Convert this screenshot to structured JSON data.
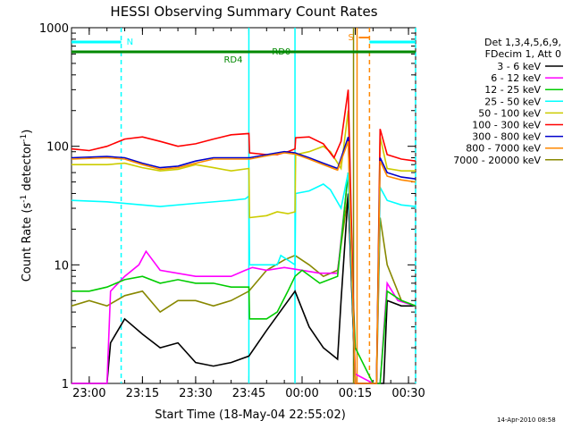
{
  "chart_data": {
    "type": "line",
    "title": "HESSI Observing Summary Count Rates",
    "xlabel": "Start Time (18-May-04 22:55:02)",
    "ylabel_main": "Count Rate (s",
    "ylabel_sup1": "-1",
    "ylabel_mid": " detector",
    "ylabel_sup2": "-1",
    "ylabel_end": ")",
    "yscale": "log",
    "ylim": [
      1,
      1000
    ],
    "xlim_min": [
      -5,
      35
    ],
    "x_ticks": [
      {
        "m": 0,
        "label": "23:00"
      },
      {
        "m": 15,
        "label": "23:15"
      },
      {
        "m": 30,
        "label": "23:30"
      },
      {
        "m": 45,
        "label": "23:45"
      },
      {
        "m": 60,
        "label": "00:00"
      },
      {
        "m": 75,
        "label": "00:15"
      },
      {
        "m": 90,
        "label": "00:30"
      }
    ],
    "y_ticks": [
      {
        "v": 1,
        "label": "1"
      },
      {
        "v": 10,
        "label": "10"
      },
      {
        "v": 100,
        "label": "100"
      },
      {
        "v": 1000,
        "label": "1000"
      }
    ],
    "legend_header": [
      "Det 1,3,4,5,6,9,",
      "FDecim 1, Att 0"
    ],
    "series": [
      {
        "name": "3 - 6 keV",
        "color": "#000000",
        "pts": [
          [
            -5,
            1
          ],
          [
            5,
            1
          ],
          [
            6,
            2.2
          ],
          [
            10,
            3.5
          ],
          [
            15,
            2.6
          ],
          [
            20,
            2
          ],
          [
            25,
            2.2
          ],
          [
            30,
            1.5
          ],
          [
            35,
            1.4
          ],
          [
            40,
            1.5
          ],
          [
            45,
            1.7
          ],
          [
            50,
            2.8
          ],
          [
            55,
            4.5
          ],
          [
            58,
            6
          ],
          [
            62,
            3
          ],
          [
            66,
            2
          ],
          [
            70,
            1.6
          ],
          [
            71,
            5
          ],
          [
            73,
            40
          ],
          [
            75,
            1
          ],
          [
            80,
            1
          ],
          [
            83,
            1
          ],
          [
            84,
            5
          ],
          [
            88,
            4.5
          ],
          [
            92,
            4.5
          ]
        ]
      },
      {
        "name": "6 - 12 keV",
        "color": "#ff00ff",
        "pts": [
          [
            -5,
            1
          ],
          [
            5,
            1
          ],
          [
            6,
            6
          ],
          [
            10,
            8
          ],
          [
            14,
            10
          ],
          [
            16,
            13
          ],
          [
            20,
            9
          ],
          [
            30,
            8
          ],
          [
            40,
            8
          ],
          [
            44,
            9
          ],
          [
            46,
            9.5
          ],
          [
            50,
            9
          ],
          [
            55,
            9.5
          ],
          [
            60,
            9
          ],
          [
            65,
            8.5
          ],
          [
            70,
            8.5
          ],
          [
            73,
            60
          ],
          [
            75,
            1.2
          ],
          [
            80,
            1
          ],
          [
            82,
            1
          ],
          [
            84,
            7
          ],
          [
            87,
            5
          ],
          [
            92,
            4.5
          ]
        ]
      },
      {
        "name": "12 - 25 keV",
        "color": "#00cc00",
        "pts": [
          [
            -5,
            6
          ],
          [
            0,
            6
          ],
          [
            5,
            6.5
          ],
          [
            10,
            7.5
          ],
          [
            15,
            8
          ],
          [
            20,
            7
          ],
          [
            25,
            7.5
          ],
          [
            30,
            7
          ],
          [
            35,
            7
          ],
          [
            40,
            6.5
          ],
          [
            45,
            6.5
          ],
          [
            45.2,
            3.5
          ],
          [
            50,
            3.5
          ],
          [
            53,
            4
          ],
          [
            56,
            6
          ],
          [
            58,
            8
          ],
          [
            60,
            9
          ],
          [
            65,
            7
          ],
          [
            70,
            8
          ],
          [
            73,
            60
          ],
          [
            75,
            2
          ],
          [
            80,
            1
          ],
          [
            82,
            1
          ],
          [
            84,
            6
          ],
          [
            88,
            5
          ],
          [
            92,
            4.5
          ]
        ]
      },
      {
        "name": "25 - 50 keV",
        "color": "#00ffff",
        "pts": [
          [
            -5,
            35
          ],
          [
            5,
            34
          ],
          [
            15,
            32
          ],
          [
            20,
            31
          ],
          [
            30,
            33
          ],
          [
            40,
            35
          ],
          [
            44,
            36
          ],
          [
            45,
            38
          ],
          [
            45.2,
            10
          ],
          [
            53,
            10
          ],
          [
            54,
            12
          ],
          [
            58,
            10
          ],
          [
            58.2,
            40
          ],
          [
            62,
            42
          ],
          [
            66,
            48
          ],
          [
            68,
            43
          ],
          [
            71,
            30
          ],
          [
            73,
            60
          ],
          [
            75,
            1
          ],
          [
            80,
            1
          ],
          [
            81,
            1
          ],
          [
            82,
            45
          ],
          [
            84,
            35
          ],
          [
            88,
            32
          ],
          [
            92,
            31
          ]
        ]
      },
      {
        "name": "50 - 100 keV",
        "color": "#cccc00",
        "pts": [
          [
            -5,
            70
          ],
          [
            5,
            70
          ],
          [
            10,
            72
          ],
          [
            15,
            66
          ],
          [
            20,
            62
          ],
          [
            25,
            64
          ],
          [
            30,
            70
          ],
          [
            35,
            66
          ],
          [
            40,
            62
          ],
          [
            45,
            65
          ],
          [
            45.2,
            25
          ],
          [
            50,
            26
          ],
          [
            53,
            28
          ],
          [
            56,
            27
          ],
          [
            58,
            28
          ],
          [
            58.2,
            85
          ],
          [
            62,
            90
          ],
          [
            66,
            100
          ],
          [
            68,
            90
          ],
          [
            71,
            65
          ],
          [
            73,
            200
          ],
          [
            75,
            1
          ],
          [
            80,
            1
          ],
          [
            81,
            1
          ],
          [
            82,
            120
          ],
          [
            84,
            65
          ],
          [
            88,
            62
          ],
          [
            92,
            62
          ]
        ]
      },
      {
        "name": "100 - 300 keV",
        "color": "#ff0000",
        "pts": [
          [
            -5,
            95
          ],
          [
            0,
            92
          ],
          [
            5,
            100
          ],
          [
            10,
            115
          ],
          [
            15,
            120
          ],
          [
            20,
            110
          ],
          [
            25,
            100
          ],
          [
            30,
            105
          ],
          [
            35,
            115
          ],
          [
            40,
            125
          ],
          [
            45,
            128
          ],
          [
            45.2,
            88
          ],
          [
            50,
            85
          ],
          [
            53,
            85
          ],
          [
            56,
            90
          ],
          [
            58,
            95
          ],
          [
            58.2,
            118
          ],
          [
            62,
            120
          ],
          [
            66,
            105
          ],
          [
            69,
            80
          ],
          [
            71,
            110
          ],
          [
            73,
            300
          ],
          [
            75,
            1
          ],
          [
            80,
            1
          ],
          [
            81,
            1
          ],
          [
            82,
            140
          ],
          [
            84,
            85
          ],
          [
            88,
            78
          ],
          [
            92,
            75
          ]
        ]
      },
      {
        "name": "300 - 800 keV",
        "color": "#0000cc",
        "pts": [
          [
            -5,
            80
          ],
          [
            5,
            82
          ],
          [
            10,
            80
          ],
          [
            15,
            72
          ],
          [
            20,
            66
          ],
          [
            25,
            68
          ],
          [
            30,
            75
          ],
          [
            35,
            80
          ],
          [
            40,
            80
          ],
          [
            45,
            80
          ],
          [
            45.2,
            80
          ],
          [
            50,
            85
          ],
          [
            55,
            90
          ],
          [
            58,
            88
          ],
          [
            62,
            80
          ],
          [
            66,
            72
          ],
          [
            70,
            65
          ],
          [
            73,
            120
          ],
          [
            75,
            1
          ],
          [
            80,
            1
          ],
          [
            81,
            1
          ],
          [
            82,
            80
          ],
          [
            84,
            60
          ],
          [
            88,
            55
          ],
          [
            92,
            53
          ]
        ]
      },
      {
        "name": "800 - 7000 keV",
        "color": "#ff8800",
        "pts": [
          [
            -5,
            78
          ],
          [
            5,
            80
          ],
          [
            10,
            78
          ],
          [
            15,
            70
          ],
          [
            20,
            64
          ],
          [
            25,
            66
          ],
          [
            30,
            72
          ],
          [
            35,
            78
          ],
          [
            40,
            78
          ],
          [
            45,
            78
          ],
          [
            45.2,
            78
          ],
          [
            50,
            83
          ],
          [
            55,
            88
          ],
          [
            58,
            86
          ],
          [
            62,
            78
          ],
          [
            66,
            70
          ],
          [
            70,
            63
          ],
          [
            73,
            110
          ],
          [
            75,
            1
          ],
          [
            80,
            1
          ],
          [
            81,
            1
          ],
          [
            82,
            75
          ],
          [
            84,
            56
          ],
          [
            88,
            52
          ],
          [
            92,
            50
          ]
        ]
      },
      {
        "name": "7000 - 20000 keV",
        "color": "#888800",
        "pts": [
          [
            -5,
            4.5
          ],
          [
            0,
            5
          ],
          [
            5,
            4.5
          ],
          [
            10,
            5.5
          ],
          [
            15,
            6
          ],
          [
            20,
            4
          ],
          [
            25,
            5
          ],
          [
            30,
            5
          ],
          [
            35,
            4.5
          ],
          [
            40,
            5
          ],
          [
            45,
            6
          ],
          [
            50,
            9
          ],
          [
            55,
            11
          ],
          [
            58,
            12
          ],
          [
            62,
            10
          ],
          [
            66,
            8
          ],
          [
            70,
            9
          ],
          [
            73,
            40
          ],
          [
            75,
            1
          ],
          [
            80,
            1
          ],
          [
            81,
            1
          ],
          [
            82,
            25
          ],
          [
            84,
            10
          ],
          [
            88,
            5
          ],
          [
            92,
            4.5
          ]
        ]
      }
    ],
    "flags": [
      {
        "label": "N",
        "color": "#00ffff",
        "segments": [
          [
            -5,
            9
          ]
        ]
      },
      {
        "label": "RD0",
        "color": "#008800",
        "segments": [
          [
            -5,
            45
          ],
          [
            58,
            92
          ]
        ]
      },
      {
        "label": "RD4",
        "color": "#008800",
        "segments": [
          [
            45,
            58
          ]
        ]
      },
      {
        "label": "S",
        "color": "#ff8800",
        "segments": [
          [
            76,
            79
          ]
        ]
      },
      {
        "label": "",
        "color": "#00ffff",
        "segments": [
          [
            79,
            92
          ]
        ]
      }
    ],
    "vlines": [
      {
        "m": 9,
        "color": "#00ffff",
        "style": "dashed"
      },
      {
        "m": 45,
        "color": "#00ffff",
        "style": "solid"
      },
      {
        "m": 58,
        "color": "#00ffff",
        "style": "solid"
      },
      {
        "m": 74.5,
        "color": "#888800",
        "style": "solid"
      },
      {
        "m": 75.5,
        "color": "#ff8800",
        "style": "solid"
      },
      {
        "m": 79,
        "color": "#ff8800",
        "style": "dashed"
      },
      {
        "m": 92,
        "color": "#00ffff",
        "style": "dashed"
      }
    ],
    "timestamp": "14-Apr-2010 08:58"
  }
}
